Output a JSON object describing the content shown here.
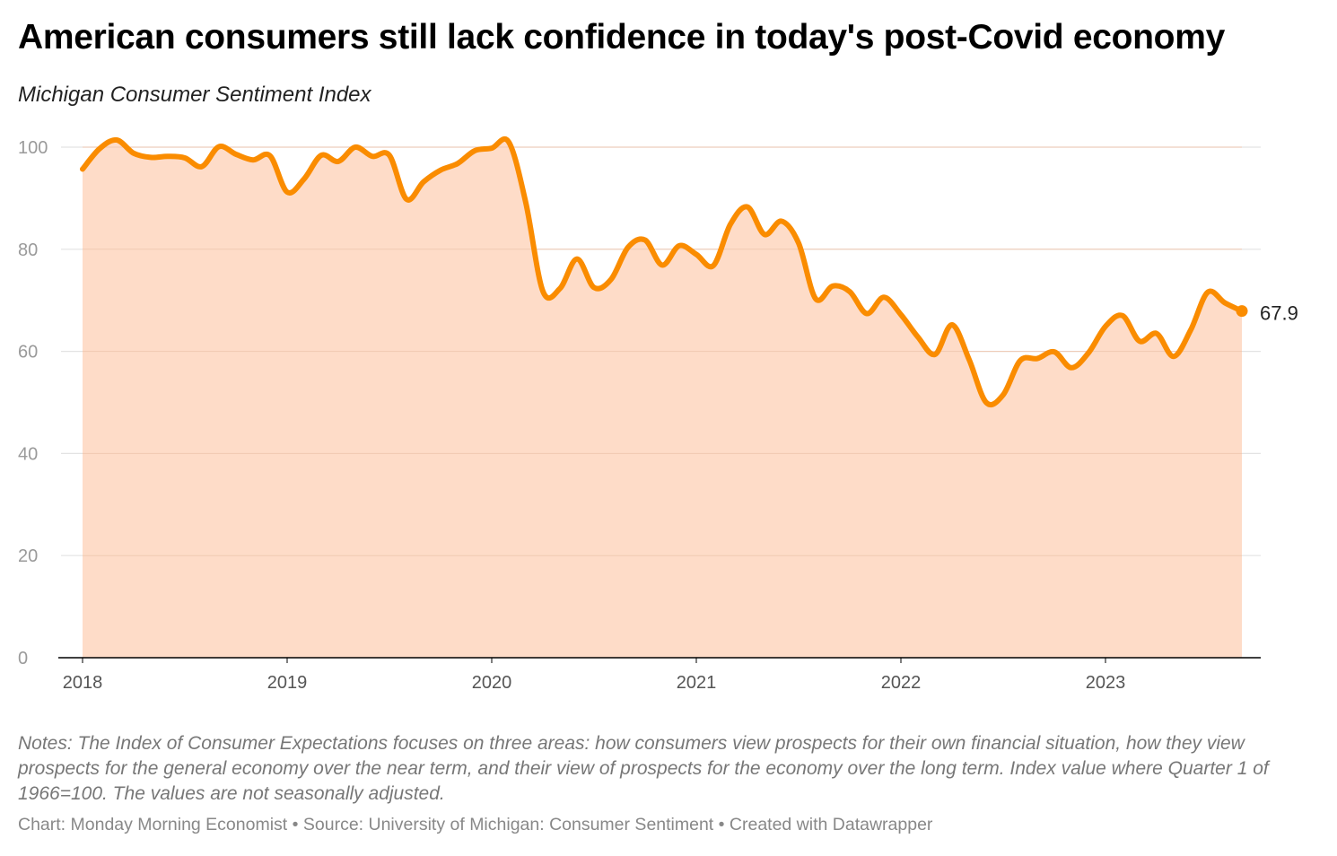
{
  "title": "American consumers still lack confidence in today's post-Covid economy",
  "subtitle": "Michigan Consumer Sentiment Index",
  "notes": "Notes: The Index of Consumer Expectations focuses on three areas: how consumers view prospects for their own financial situation, how they view prospects for the general economy over the near term, and their view of prospects for the economy over the long term. Index value where Quarter 1 of 1966=100. The values are not seasonally adjusted.",
  "footer": "Chart: Monday Morning Economist • Source: University of Michigan: Consumer Sentiment • Created with Datawrapper",
  "colors": {
    "line": "#fa8c00",
    "fill": "#fedcc8",
    "grid": "#e3e3e3",
    "tick": "#9a9a9a"
  },
  "chart_data": {
    "type": "area",
    "title": "American consumers still lack confidence in today's post-Covid economy",
    "subtitle": "Michigan Consumer Sentiment Index",
    "xlabel": "",
    "ylabel": "",
    "ylim": [
      0,
      100
    ],
    "yticks": [
      0,
      20,
      40,
      60,
      80,
      100
    ],
    "xticks": [
      "2018",
      "2019",
      "2020",
      "2021",
      "2022",
      "2023"
    ],
    "x_start": "2018-01",
    "frequency": "monthly",
    "grid": true,
    "end_label": "67.9",
    "series": [
      {
        "name": "Consumer Sentiment",
        "values": [
          95.7,
          99.7,
          101.4,
          98.8,
          98.0,
          98.2,
          97.9,
          96.2,
          100.1,
          98.6,
          97.5,
          98.3,
          91.2,
          93.8,
          98.4,
          97.2,
          100.0,
          98.2,
          98.4,
          89.8,
          93.2,
          95.5,
          96.8,
          99.3,
          99.8,
          101.0,
          89.1,
          71.8,
          72.3,
          78.1,
          72.5,
          74.1,
          80.4,
          81.8,
          76.9,
          80.7,
          79.0,
          76.8,
          84.9,
          88.3,
          82.9,
          85.5,
          81.2,
          70.3,
          72.8,
          71.7,
          67.4,
          70.6,
          67.2,
          62.8,
          59.4,
          65.2,
          58.4,
          50.0,
          51.5,
          58.2,
          58.6,
          59.9,
          56.8,
          59.7,
          64.9,
          67.0,
          62.0,
          63.5,
          59.0,
          64.2,
          71.6,
          69.5,
          67.9
        ]
      }
    ]
  }
}
